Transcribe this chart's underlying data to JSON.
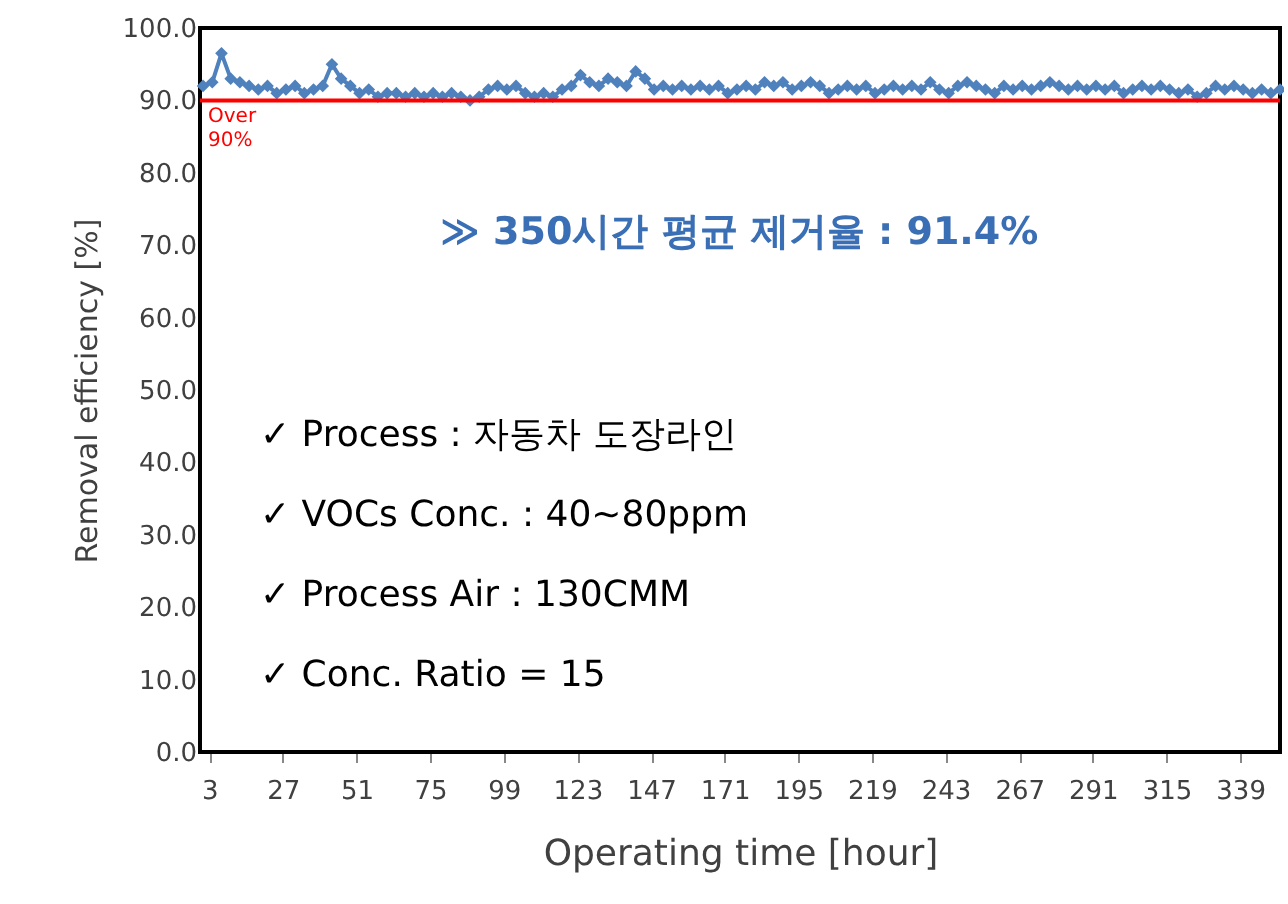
{
  "chart_data": {
    "type": "line",
    "xlabel": "Operating time [hour]",
    "ylabel": "Removal efficiency [%]",
    "x": [
      1,
      4,
      7,
      10,
      13,
      16,
      19,
      22,
      25,
      28,
      31,
      34,
      37,
      40,
      43,
      46,
      49,
      52,
      55,
      58,
      61,
      64,
      67,
      70,
      73,
      76,
      79,
      82,
      85,
      88,
      91,
      94,
      97,
      100,
      103,
      106,
      109,
      112,
      115,
      118,
      121,
      124,
      127,
      130,
      133,
      136,
      139,
      142,
      145,
      148,
      151,
      154,
      157,
      160,
      163,
      166,
      169,
      172,
      175,
      178,
      181,
      184,
      187,
      190,
      193,
      196,
      199,
      202,
      205,
      208,
      211,
      214,
      217,
      220,
      223,
      226,
      229,
      232,
      235,
      238,
      241,
      244,
      247,
      250,
      253,
      256,
      259,
      262,
      265,
      268,
      271,
      274,
      277,
      280,
      283,
      286,
      289,
      292,
      295,
      298,
      301,
      304,
      307,
      310,
      313,
      316,
      319,
      322,
      325,
      328,
      331,
      334,
      337,
      340,
      343,
      346,
      349,
      352
    ],
    "series": [
      {
        "color": "#4f81bd",
        "values": [
          92.0,
          92.5,
          96.5,
          93.0,
          92.5,
          92.0,
          91.5,
          92.0,
          91.0,
          91.5,
          92.0,
          91.0,
          91.5,
          92.0,
          95.0,
          93.0,
          92.0,
          91.0,
          91.5,
          90.5,
          91.0,
          91.0,
          90.5,
          91.0,
          90.5,
          91.0,
          90.5,
          91.0,
          90.5,
          90.0,
          90.5,
          91.5,
          92.0,
          91.5,
          92.0,
          91.0,
          90.5,
          91.0,
          90.5,
          91.5,
          92.0,
          93.5,
          92.5,
          92.0,
          93.0,
          92.5,
          92.0,
          94.0,
          93.0,
          91.5,
          92.0,
          91.5,
          92.0,
          91.5,
          92.0,
          91.5,
          92.0,
          91.0,
          91.5,
          92.0,
          91.5,
          92.5,
          92.0,
          92.5,
          91.5,
          92.0,
          92.5,
          92.0,
          91.0,
          91.5,
          92.0,
          91.5,
          92.0,
          91.0,
          91.5,
          92.0,
          91.5,
          92.0,
          91.5,
          92.5,
          91.5,
          91.0,
          92.0,
          92.5,
          92.0,
          91.5,
          91.0,
          92.0,
          91.5,
          92.0,
          91.5,
          92.0,
          92.5,
          92.0,
          91.5,
          92.0,
          91.5,
          92.0,
          91.5,
          92.0,
          91.0,
          91.5,
          92.0,
          91.5,
          92.0,
          91.5,
          91.0,
          91.5,
          90.5,
          91.0,
          92.0,
          91.5,
          92.0,
          91.5,
          91.0,
          91.5,
          91.0,
          91.5
        ]
      }
    ],
    "xlim": [
      0,
      352
    ],
    "xticks": [
      3,
      27,
      51,
      75,
      99,
      123,
      147,
      171,
      195,
      219,
      243,
      267,
      291,
      315,
      339
    ],
    "ylim": [
      0,
      100
    ],
    "yticks": [
      {
        "value": 0,
        "label": "0.0"
      },
      {
        "value": 10,
        "label": "10.0"
      },
      {
        "value": 20,
        "label": "20.0"
      },
      {
        "value": 30,
        "label": "30.0"
      },
      {
        "value": 40,
        "label": "40.0"
      },
      {
        "value": 50,
        "label": "50.0"
      },
      {
        "value": 60,
        "label": "60.0"
      },
      {
        "value": 70,
        "label": "70.0"
      },
      {
        "value": 80,
        "label": "80.0"
      },
      {
        "value": 90,
        "label": "90.0"
      },
      {
        "value": 100,
        "label": "100.0"
      }
    ],
    "ref_lines": [
      {
        "axis": "y",
        "value": 90,
        "label": "Over 90%",
        "color": "#ff0000"
      }
    ],
    "annotations": [
      "≫ 350시간 평균 제거율 : 91.4%",
      "✓  Process : 자동차 도장라인",
      "✓  VOCs Conc. : 40~80ppm",
      "✓  Process Air : 130CMM",
      "✓  Conc. Ratio = 15"
    ],
    "grid": false,
    "marker": "diamond",
    "line_style": "solid"
  }
}
